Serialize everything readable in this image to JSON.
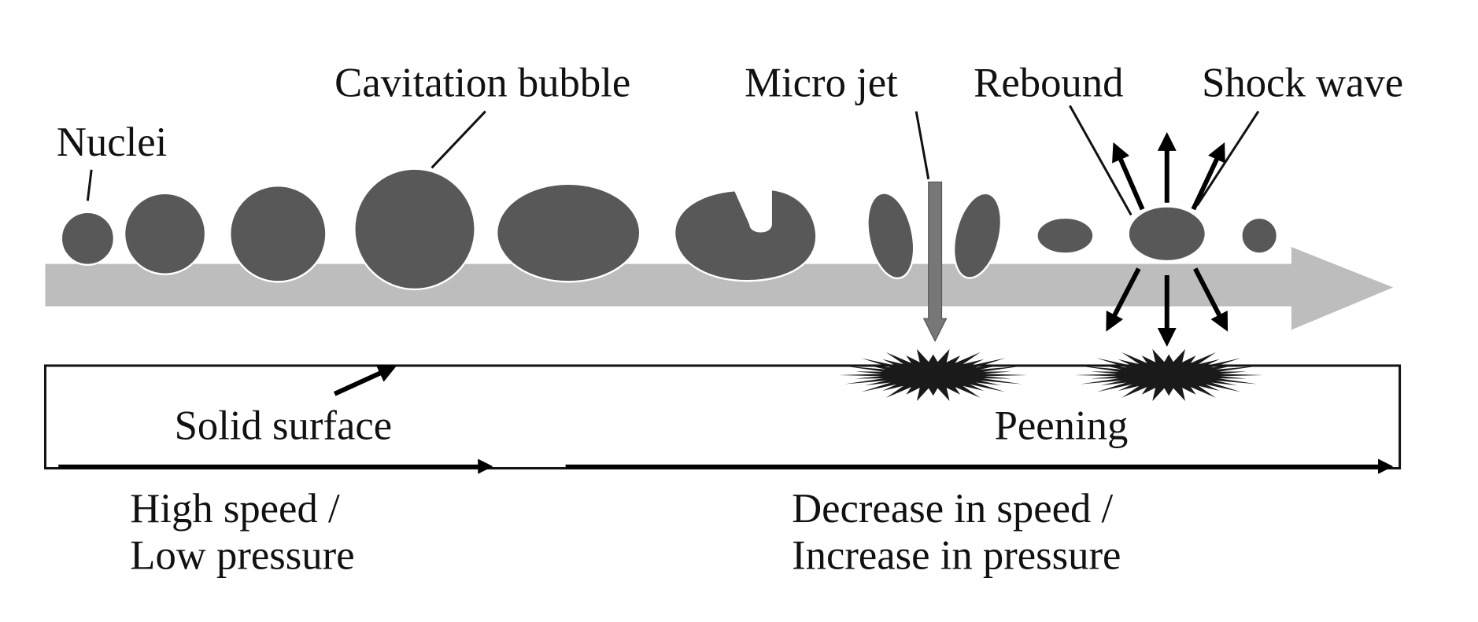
{
  "bubble_labels": [
    "Nuclei",
    "Cavitation bubble",
    "Micro jet",
    "Rebound",
    "Shock wave"
  ],
  "surface_labels": [
    "Solid surface",
    "Peening"
  ],
  "phases": [
    {
      "lines": [
        "High speed /",
        "Low pressure"
      ]
    },
    {
      "lines": [
        "Decrease in speed /",
        "Increase in pressure"
      ]
    }
  ]
}
